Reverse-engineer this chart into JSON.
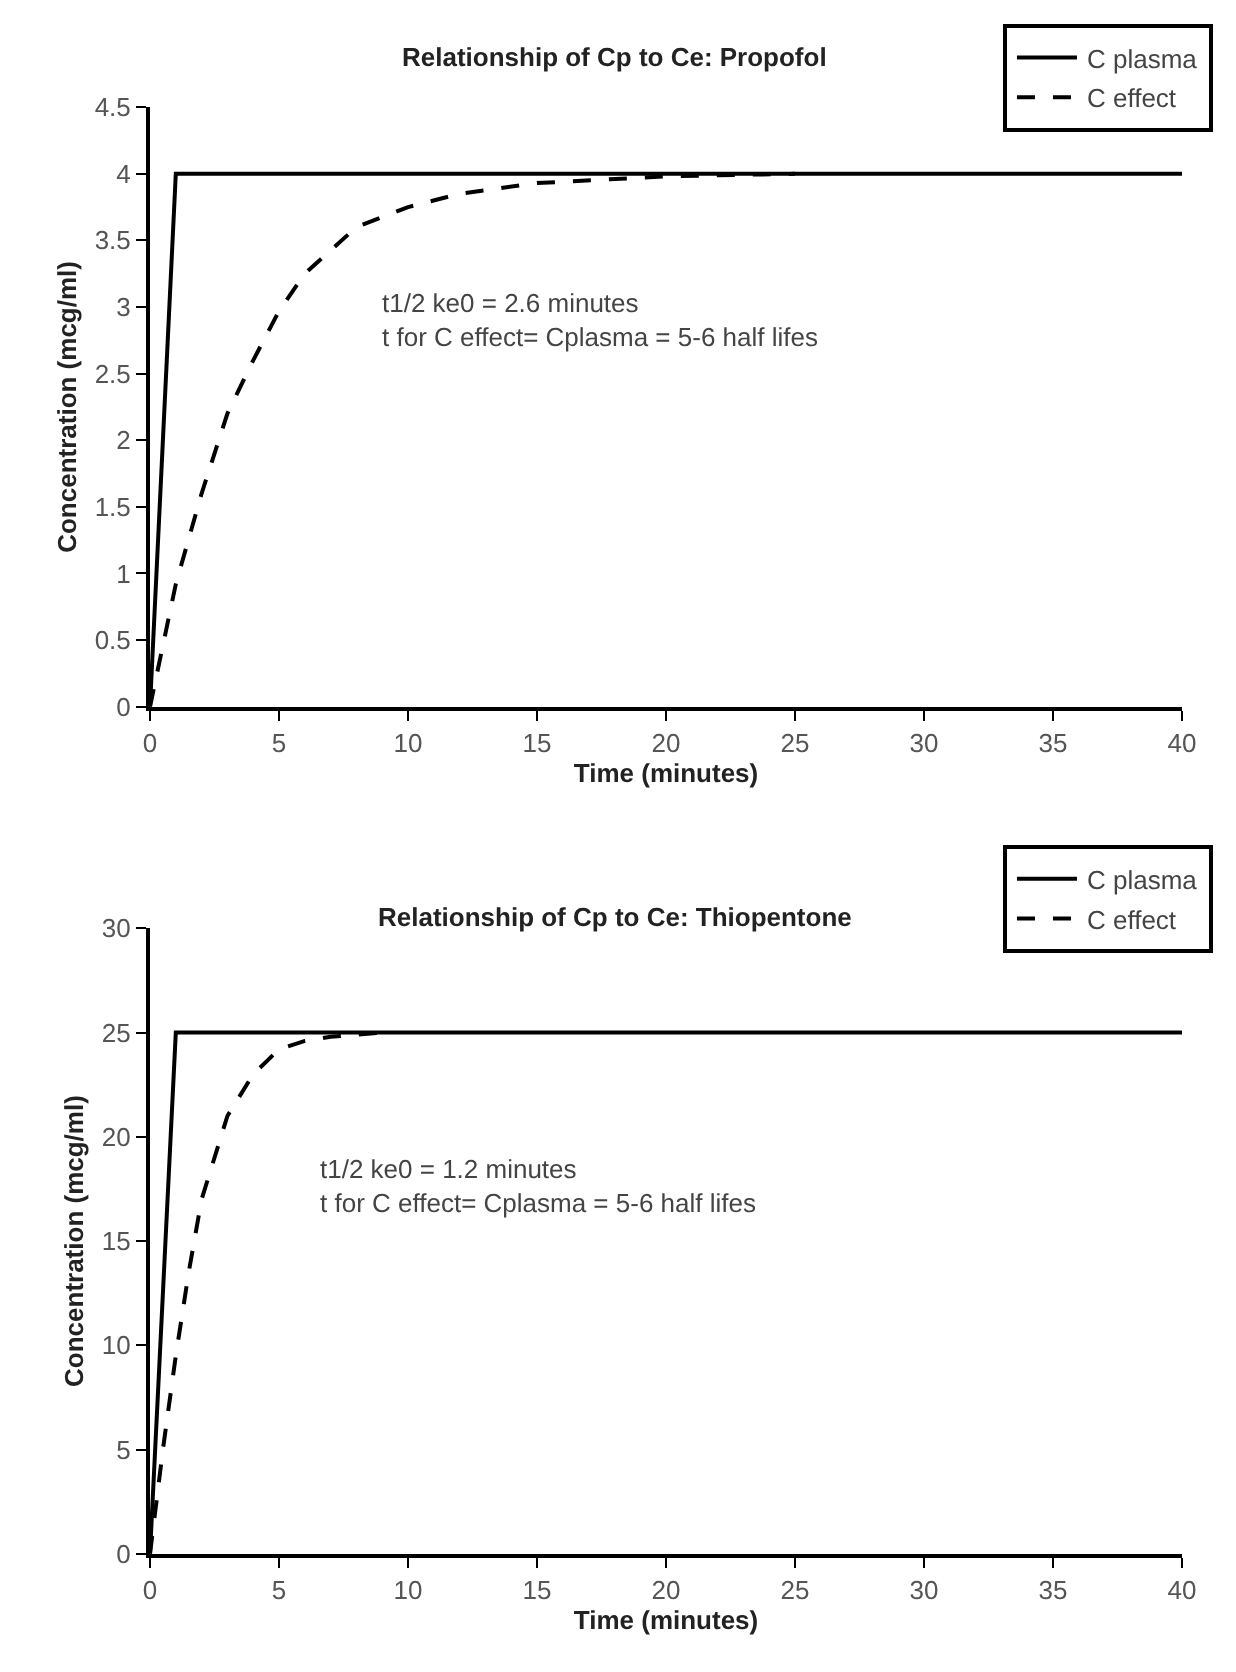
{
  "chart_data": [
    {
      "type": "line",
      "title": "Relationship of Cp to Ce: Propofol",
      "xlabel": "Time (minutes)",
      "ylabel": "Concentration (mcg/ml)",
      "xlim": [
        0,
        40
      ],
      "xticks": [
        0,
        5,
        10,
        15,
        20,
        25,
        30,
        35,
        40
      ],
      "ylim": [
        0,
        4.5
      ],
      "yticks": [
        0,
        0.5,
        1,
        1.5,
        2,
        2.5,
        3,
        3.5,
        4,
        4.5
      ],
      "legend": "top right",
      "marker": "none",
      "annotations": [
        "t1/2 ke0 = 2.6 minutes",
        "t for C effect= Cplasma = 5-6 half lifes"
      ],
      "series": [
        {
          "name": "C plasma",
          "color": "#000000",
          "line_style": "solid",
          "x": [
            0,
            1,
            40
          ],
          "values": [
            0,
            4,
            4
          ]
        },
        {
          "name": "C effect",
          "color": "#000000",
          "line_style": "dashed",
          "x": [
            0,
            1,
            2,
            3,
            4,
            5,
            6,
            8,
            10,
            12,
            15,
            20,
            25
          ],
          "values": [
            0,
            0.92,
            1.6,
            2.2,
            2.6,
            2.97,
            3.25,
            3.6,
            3.75,
            3.85,
            3.93,
            3.98,
            4.0
          ]
        }
      ]
    },
    {
      "type": "line",
      "title": "Relationship of Cp to Ce: Thiopentone",
      "xlabel": "Time (minutes)",
      "ylabel": "Concentration (mcg/ml)",
      "xlim": [
        0,
        40
      ],
      "xticks": [
        0,
        5,
        10,
        15,
        20,
        25,
        30,
        35,
        40
      ],
      "ylim": [
        0,
        30
      ],
      "yticks": [
        0,
        5,
        10,
        15,
        20,
        25,
        30
      ],
      "legend": "top right",
      "marker": "none",
      "annotations": [
        "t1/2 ke0 = 1.2 minutes",
        "t for C effect= Cplasma = 5-6 half lifes"
      ],
      "series": [
        {
          "name": "C plasma",
          "color": "#000000",
          "line_style": "solid",
          "x": [
            0,
            1,
            40
          ],
          "values": [
            0,
            25,
            25
          ]
        },
        {
          "name": "C effect",
          "color": "#000000",
          "line_style": "dashed",
          "x": [
            0,
            0.5,
            1,
            1.5,
            2,
            3,
            4,
            5,
            6,
            7,
            8,
            9
          ],
          "values": [
            0,
            5,
            9.5,
            13.5,
            17,
            21,
            23,
            24.2,
            24.6,
            24.8,
            24.9,
            25
          ]
        }
      ]
    }
  ]
}
